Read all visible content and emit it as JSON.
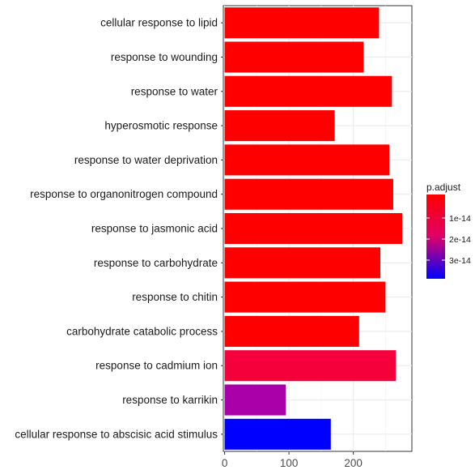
{
  "chart_data": {
    "type": "bar",
    "orientation": "horizontal",
    "categories": [
      "cellular response to lipid",
      "response to wounding",
      "response to water",
      "hyperosmotic response",
      "response to water deprivation",
      "response to organonitrogen compound",
      "response to jasmonic acid",
      "response to carbohydrate",
      "response to chitin",
      "carbohydrate catabolic process",
      "response to cadmium ion",
      "response to karrikin",
      "cellular response to abscisic acid stimulus"
    ],
    "values": [
      240,
      216,
      260,
      171,
      256,
      262,
      276,
      242,
      250,
      209,
      266,
      95,
      165
    ],
    "colors": [
      "#ff0000",
      "#ff0000",
      "#ff0000",
      "#ff0000",
      "#ff0000",
      "#ff0000",
      "#ff0000",
      "#ff0000",
      "#ff0000",
      "#ff0000",
      "#f5003a",
      "#aa00aa",
      "#0000ff"
    ],
    "xlim": [
      -2,
      291
    ],
    "x_ticks": [
      0,
      100,
      200
    ],
    "x_tick_labels": [
      "0",
      "100",
      "200"
    ],
    "grid": true,
    "legend": {
      "title": "p.adjust",
      "placement": "right",
      "gradient_top_color": "#ff0000",
      "gradient_mid_color": "#e0006a",
      "gradient_bottom_color": "#0000ff",
      "tick_labels": [
        "1e-14",
        "2e-14",
        "3e-14"
      ]
    }
  }
}
